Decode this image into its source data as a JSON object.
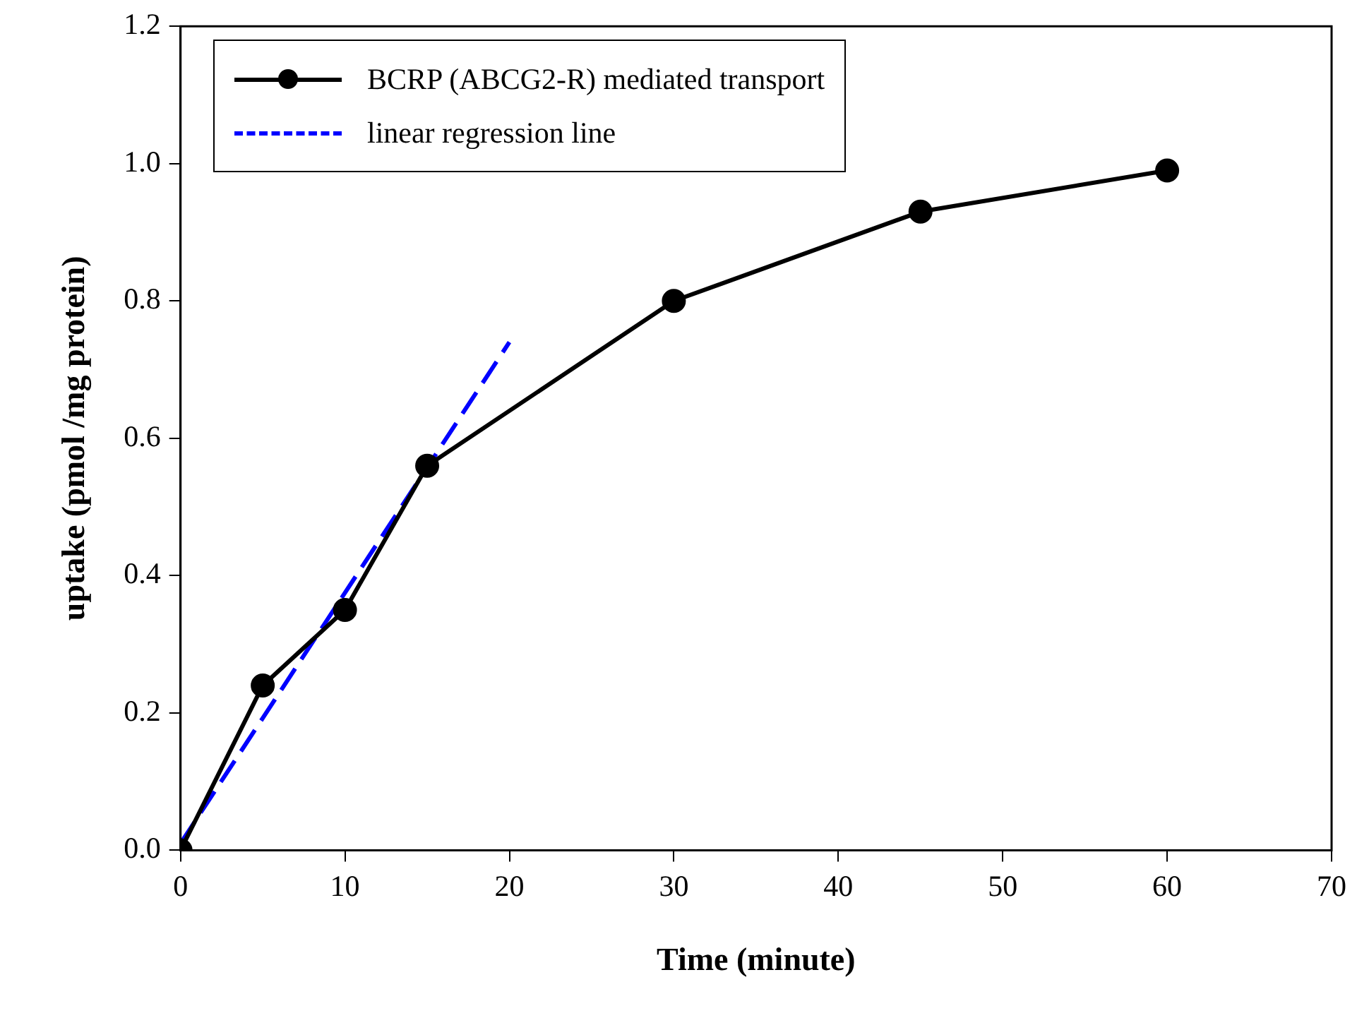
{
  "chart_data": {
    "type": "line",
    "xlabel": "Time (minute)",
    "ylabel": "uptake (pmol /mg protein)",
    "xlim": [
      0,
      70
    ],
    "xticks": [
      0,
      10,
      20,
      30,
      40,
      50,
      60,
      70
    ],
    "ylim": [
      0,
      1.2
    ],
    "yticks": [
      {
        "value": 0,
        "label": "0.0"
      },
      {
        "value": 0.2,
        "label": "0.2"
      },
      {
        "value": 0.4,
        "label": "0.4"
      },
      {
        "value": 0.6,
        "label": "0.6"
      },
      {
        "value": 0.8,
        "label": "0.8"
      },
      {
        "value": 1.0,
        "label": "1.0"
      },
      {
        "value": 1.2,
        "label": "1.2"
      }
    ],
    "grid": false,
    "legend": "top left",
    "series": [
      {
        "name": "BCRP (ABCG2-R) mediated transport",
        "type": "line",
        "color": "#000000",
        "marker": "circle",
        "line_style": "solid",
        "x": [
          0,
          5,
          10,
          15,
          30,
          45,
          60
        ],
        "values": [
          0.0,
          0.24,
          0.35,
          0.56,
          0.8,
          0.93,
          0.99
        ]
      },
      {
        "name": "linear regression line",
        "type": "line",
        "color": "#0000ff",
        "marker": "none",
        "line_style": "dashed",
        "x": [
          0,
          20
        ],
        "values": [
          0.01,
          0.74
        ]
      }
    ]
  }
}
